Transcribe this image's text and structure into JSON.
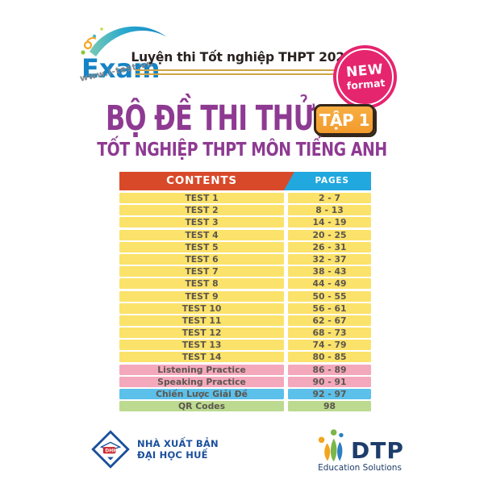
{
  "brand": {
    "logo_text": "Exam",
    "website": "www.i-test.vn"
  },
  "header": {
    "banner": "Luyện thi Tốt nghiệp THPT 2025",
    "new_badge": {
      "line1": "NEW",
      "line2": "format"
    }
  },
  "title": {
    "main": "BỘ ĐỀ THI THỬ",
    "volume_badge": "TẬP 1",
    "subtitle": "TỐT NGHIỆP THPT MÔN TIẾNG ANH"
  },
  "contents_table": {
    "contents_header": "CONTENTS",
    "pages_header": "PAGES",
    "rows": [
      {
        "label": "TEST 1",
        "pages": "2 - 7",
        "color": "#fbe26a"
      },
      {
        "label": "TEST 2",
        "pages": "8 - 13",
        "color": "#fbe26a"
      },
      {
        "label": "TEST 3",
        "pages": "14 - 19",
        "color": "#fbe26a"
      },
      {
        "label": "TEST 4",
        "pages": "20 - 25",
        "color": "#fbe26a"
      },
      {
        "label": "TEST 5",
        "pages": "26 - 31",
        "color": "#fbe26a"
      },
      {
        "label": "TEST 6",
        "pages": "32 - 37",
        "color": "#fbe26a"
      },
      {
        "label": "TEST 7",
        "pages": "38 - 43",
        "color": "#fbe26a"
      },
      {
        "label": "TEST 8",
        "pages": "44 - 49",
        "color": "#fbe26a"
      },
      {
        "label": "TEST 9",
        "pages": "50 - 55",
        "color": "#fbe26a"
      },
      {
        "label": "TEST 10",
        "pages": "56 - 61",
        "color": "#fbe26a"
      },
      {
        "label": "TEST 11",
        "pages": "62 - 67",
        "color": "#fbe26a"
      },
      {
        "label": "TEST 12",
        "pages": "68 - 73",
        "color": "#fbe26a"
      },
      {
        "label": "TEST 13",
        "pages": "74 - 79",
        "color": "#fbe26a"
      },
      {
        "label": "TEST 14",
        "pages": "80 - 85",
        "color": "#fbe26a"
      },
      {
        "label": "Listening Practice",
        "pages": "86 - 89",
        "color": "#f4a8bc"
      },
      {
        "label": "Speaking Practice",
        "pages": "90 - 91",
        "color": "#f4a8bc"
      },
      {
        "label": "Chiến Lược Giải Đề",
        "pages": "92 - 97",
        "color": "#5bc0ea"
      },
      {
        "label": "QR Codes",
        "pages": "98",
        "color": "#bcda90"
      }
    ]
  },
  "footer": {
    "publisher": {
      "logo_label": "DHH",
      "line1": "NHÀ XUẤT BẢN",
      "line2": "ĐẠI HỌC HUẾ"
    },
    "company": {
      "name": "DTP",
      "tagline": "Education Solutions"
    }
  },
  "colors": {
    "title_purple": "#8e3a92",
    "banner_text": "#29211f",
    "gold_line": "#cfa445",
    "new_badge_pink": "#e6256f",
    "volume_badge_orange": "#f39b2d",
    "contents_header_bg": "#d8492a",
    "pages_header_bg": "#21a8de",
    "row_text": "#5c564e",
    "row_yellow": "#fbe26a",
    "row_pink": "#f4a8bc",
    "row_blue": "#5bc0ea",
    "row_green": "#bcda90",
    "brand_blue": "#1583c5",
    "publisher_blue": "#1b4f9c",
    "company_blue": "#1d3d6b"
  }
}
